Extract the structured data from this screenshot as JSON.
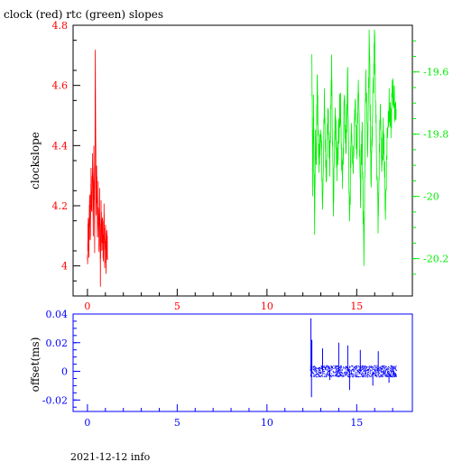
{
  "title": "clock (red) rtc (green) slopes",
  "footer": "2021-12-12 info",
  "colors": {
    "red": "#ff0000",
    "green": "#00ee00",
    "blue": "#0000ff",
    "black": "#000000"
  },
  "chart_data": [
    {
      "type": "line",
      "title": "clock (red) rtc (green) slopes",
      "xlabel": "",
      "ylabel": "clockslope",
      "xlim": [
        -0.8,
        18.1
      ],
      "ylim": [
        3.9,
        4.8
      ],
      "y2lim": [
        -19.45,
        -20.32
      ],
      "x_ticks": [
        "0",
        "5",
        "10",
        "15"
      ],
      "y_ticks": [
        "4",
        "4.2",
        "4.4",
        "4.6",
        "4.8"
      ],
      "y2_ticks": [
        "-19.6",
        "-19.8",
        "-20",
        "-20.2"
      ],
      "series": [
        {
          "color": "#ff0000",
          "axis": "left",
          "x": [
            0.0,
            0.04,
            0.08,
            0.12,
            0.16,
            0.2,
            0.24,
            0.28,
            0.32,
            0.36,
            0.4,
            0.44,
            0.48,
            0.52,
            0.56,
            0.6,
            0.64,
            0.68,
            0.72,
            0.76,
            0.8,
            0.84,
            0.88,
            0.92,
            0.96,
            1.0,
            1.04,
            1.08,
            1.12
          ],
          "y": [
            4.02,
            4.14,
            4.06,
            4.22,
            4.1,
            4.3,
            4.18,
            4.35,
            4.12,
            4.38,
            4.08,
            4.74,
            4.2,
            4.33,
            4.1,
            4.26,
            4.05,
            4.22,
            3.95,
            4.18,
            4.08,
            4.15,
            4.02,
            4.2,
            4.03,
            4.12,
            4.01,
            4.09,
            4.03
          ]
        },
        {
          "color": "#00ee00",
          "axis": "right",
          "x": [
            12.5,
            12.55,
            12.6,
            12.65,
            12.7,
            12.75,
            12.8,
            12.9,
            13.0,
            13.1,
            13.2,
            13.3,
            13.4,
            13.5,
            13.6,
            13.7,
            13.8,
            13.9,
            14.0,
            14.1,
            14.2,
            14.3,
            14.4,
            14.5,
            14.6,
            14.7,
            14.8,
            14.9,
            15.0,
            15.1,
            15.2,
            15.3,
            15.4,
            15.5,
            15.6,
            15.7,
            15.8,
            15.9,
            16.0,
            16.1,
            16.2,
            16.3,
            16.4,
            16.5,
            16.6,
            16.7,
            16.8,
            16.9,
            17.0,
            17.1,
            17.2
          ],
          "y": [
            -19.55,
            -19.95,
            -19.72,
            -20.1,
            -19.8,
            -19.85,
            -19.65,
            -19.9,
            -19.75,
            -20.0,
            -19.7,
            -19.95,
            -19.72,
            -19.88,
            -19.6,
            -20.05,
            -19.7,
            -19.92,
            -19.78,
            -19.68,
            -19.98,
            -19.7,
            -19.85,
            -19.62,
            -20.12,
            -19.75,
            -19.9,
            -19.7,
            -19.85,
            -19.65,
            -20.0,
            -19.78,
            -20.22,
            -19.58,
            -19.85,
            -19.48,
            -19.95,
            -19.7,
            -19.5,
            -19.85,
            -20.1,
            -19.72,
            -19.9,
            -19.78,
            -20.05,
            -19.8,
            -19.7,
            -19.78,
            -19.65,
            -19.7,
            -19.72
          ]
        }
      ]
    },
    {
      "type": "scatter",
      "title": "",
      "xlabel": "",
      "ylabel": "offset(ms)",
      "xlim": [
        -0.8,
        18.1
      ],
      "ylim": [
        -0.028,
        0.04
      ],
      "x_ticks": [
        "0",
        "5",
        "10",
        "15"
      ],
      "y_ticks": [
        "-0.02",
        "0",
        "0.02",
        "0.04"
      ],
      "series": [
        {
          "color": "#0000ff",
          "x_range": [
            12.4,
            17.2
          ],
          "y_center": 0.0,
          "y_spread": 0.004,
          "spikes": [
            {
              "x": 12.45,
              "y": 0.037
            },
            {
              "x": 12.5,
              "y": 0.022
            },
            {
              "x": 12.48,
              "y": -0.018
            },
            {
              "x": 13.1,
              "y": 0.016
            },
            {
              "x": 13.5,
              "y": -0.006
            },
            {
              "x": 14.0,
              "y": 0.02
            },
            {
              "x": 14.5,
              "y": 0.018
            },
            {
              "x": 14.6,
              "y": -0.013
            },
            {
              "x": 15.2,
              "y": 0.015
            },
            {
              "x": 15.9,
              "y": -0.01
            },
            {
              "x": 16.2,
              "y": 0.014
            },
            {
              "x": 16.8,
              "y": -0.008
            }
          ]
        }
      ]
    }
  ]
}
